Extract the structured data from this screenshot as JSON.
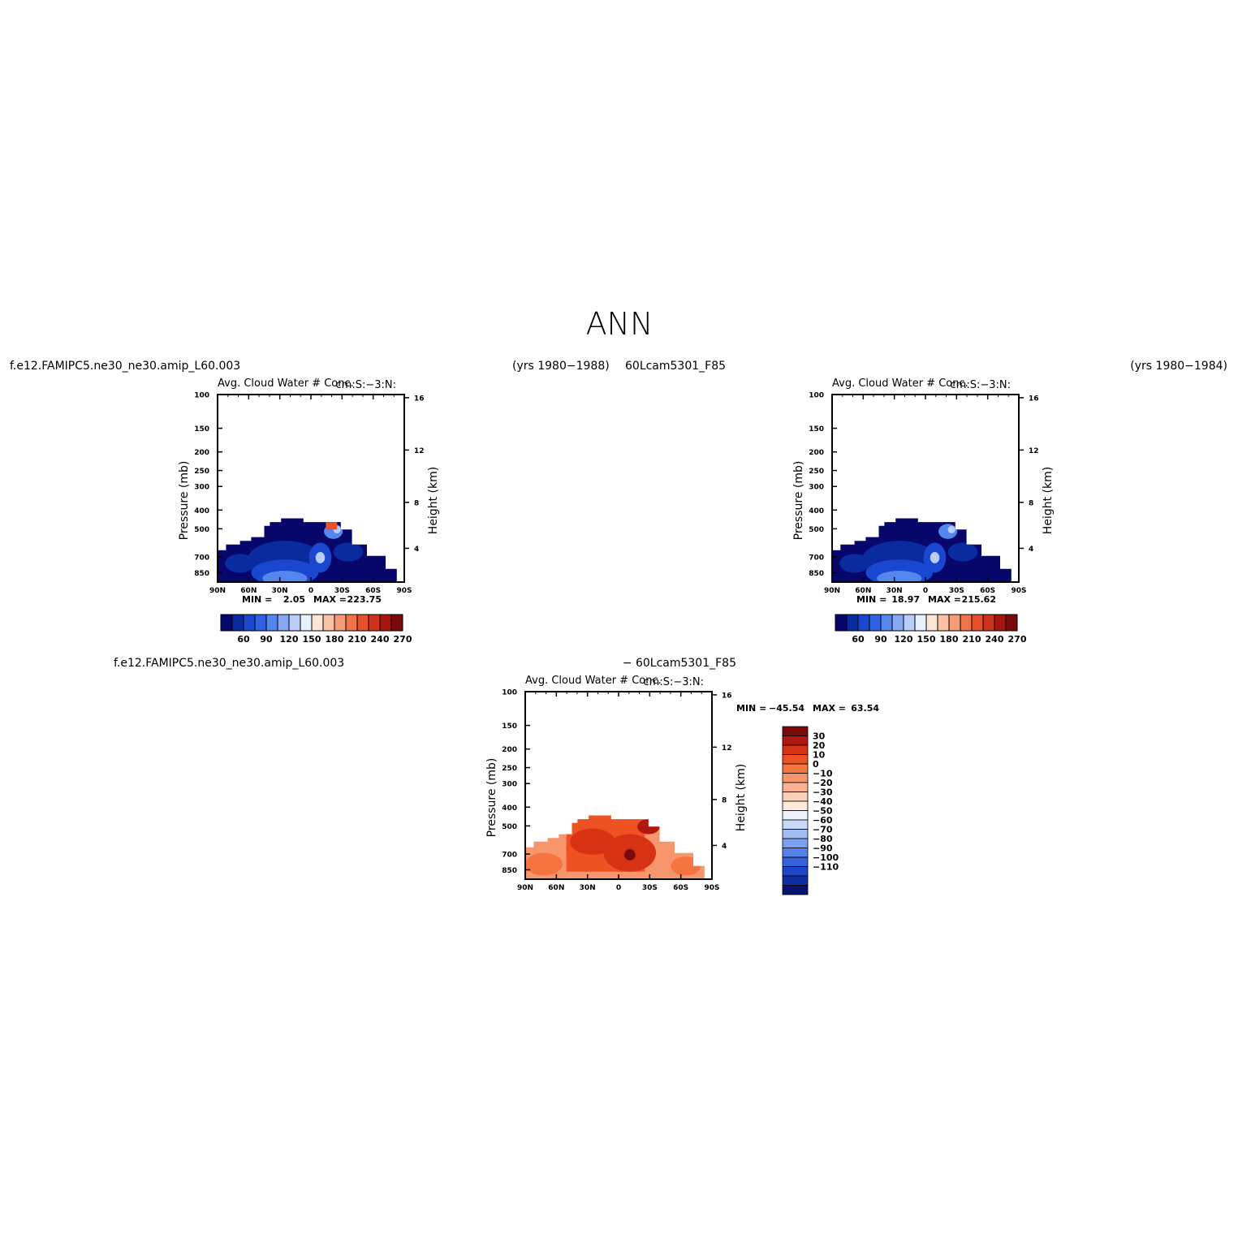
{
  "page": {
    "title": "ANN",
    "header_left_1": "f.e12.FAMIPC5.ne30_ne30.amip_L60.003",
    "header_mid_1": "(yrs 1980−1988)",
    "header_mid_2": "60Lcam5301_F85",
    "header_right_2": "(yrs 1980−1984)",
    "header_left_3": "f.e12.FAMIPC5.ne30_ne30.amip_L60.003",
    "header_mid_3": "− 60Lcam5301_F85"
  },
  "colors": {
    "seq": [
      "#06066b",
      "#0a2aa0",
      "#1a47cf",
      "#2f62e3",
      "#5487ee",
      "#86a9f3",
      "#b8cdf8",
      "#e9f0fd",
      "#fde5d6",
      "#f9c2a6",
      "#f59c78",
      "#f0734a",
      "#e6502a",
      "#d0331b",
      "#a8150f",
      "#7a0a0a"
    ],
    "diff": [
      "#7a0a0a",
      "#b0170f",
      "#d83215",
      "#ef5222",
      "#f5743f",
      "#f7956c",
      "#f9b394",
      "#fbd0b8",
      "#fde8d9",
      "#eef2fd",
      "#c8d8f8",
      "#a0bdf4",
      "#7ca0ef",
      "#5581e8",
      "#3563dc",
      "#1d45c8",
      "#0f2ea3",
      "#06136f"
    ]
  },
  "chart_data": [
    {
      "type": "heatmap",
      "title": "Avg. Cloud Water # Conc.",
      "units": "cm:S:−3:N:",
      "xlabel": "",
      "ylabel": "Pressure (mb)",
      "ylabel_right": "Height (km)",
      "x_ticks": [
        "90N",
        "60N",
        "30N",
        "0",
        "30S",
        "60S",
        "90S"
      ],
      "y_ticks": [
        "100",
        "150",
        "200",
        "250",
        "300",
        "400",
        "500",
        "700",
        "850"
      ],
      "y_right_ticks": [
        "16",
        "12",
        "8",
        "4"
      ],
      "min_label": "MIN =",
      "min_value": "2.05",
      "max_label": "MAX =",
      "max_value": "223.75",
      "colorbar_labels": [
        "60",
        "90",
        "120",
        "150",
        "180",
        "210",
        "240",
        "270"
      ]
    },
    {
      "type": "heatmap",
      "title": "Avg. Cloud Water # Conc.",
      "units": "cm:S:−3:N:",
      "xlabel": "",
      "ylabel": "Pressure (mb)",
      "ylabel_right": "Height (km)",
      "x_ticks": [
        "90N",
        "60N",
        "30N",
        "0",
        "30S",
        "60S",
        "90S"
      ],
      "y_ticks": [
        "100",
        "150",
        "200",
        "250",
        "300",
        "400",
        "500",
        "700",
        "850"
      ],
      "y_right_ticks": [
        "16",
        "12",
        "8",
        "4"
      ],
      "min_label": "MIN =",
      "min_value": "18.97",
      "max_label": "MAX =",
      "max_value": "215.62",
      "colorbar_labels": [
        "60",
        "90",
        "120",
        "150",
        "180",
        "210",
        "240",
        "270"
      ]
    },
    {
      "type": "heatmap",
      "title": "Avg. Cloud Water # Conc.",
      "units": "cm:S:−3:N:",
      "xlabel": "",
      "ylabel": "Pressure (mb)",
      "ylabel_right": "Height (km)",
      "x_ticks": [
        "90N",
        "60N",
        "30N",
        "0",
        "30S",
        "60S",
        "90S"
      ],
      "y_ticks": [
        "100",
        "150",
        "200",
        "250",
        "300",
        "400",
        "500",
        "700",
        "850"
      ],
      "y_right_ticks": [
        "16",
        "12",
        "8",
        "4"
      ],
      "min_label": "MIN =",
      "min_value": "−45.54",
      "max_label": "MAX =",
      "max_value": "63.54",
      "colorbar_labels": [
        "30",
        "20",
        "10",
        "0",
        "−10",
        "−20",
        "−30",
        "−40",
        "−50",
        "−60",
        "−70",
        "−80",
        "−90",
        "−100",
        "−110"
      ]
    }
  ]
}
